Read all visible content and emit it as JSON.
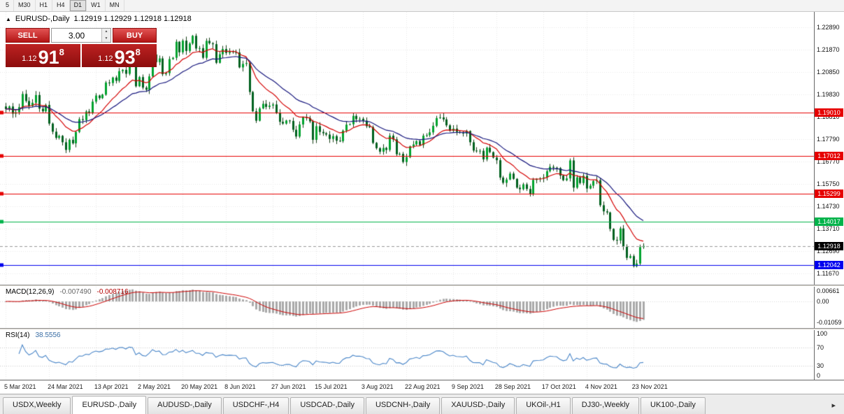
{
  "toolbar": {
    "timeframes": [
      {
        "label": "5",
        "active": false
      },
      {
        "label": "M30",
        "active": false
      },
      {
        "label": "H1",
        "active": false
      },
      {
        "label": "H4",
        "active": false
      },
      {
        "label": "D1",
        "active": true
      },
      {
        "label": "W1",
        "active": false
      },
      {
        "label": "MN",
        "active": false
      }
    ]
  },
  "header": {
    "collapse_icon": "▲",
    "symbol": "EURUSD-,Daily",
    "ohlc": "1.12919 1.12929 1.12918 1.12918"
  },
  "trade_panel": {
    "sell_label": "SELL",
    "buy_label": "BUY",
    "volume": "3.00",
    "spin_up_icon": "▲",
    "spin_down_icon": "▼",
    "sell_price": {
      "prefix": "1.12",
      "big": "91",
      "sup": "8"
    },
    "buy_price": {
      "prefix": "1.12",
      "big": "93",
      "sup": "8"
    }
  },
  "price_axis_labels": [
    "1.22890",
    "1.21870",
    "1.20850",
    "1.19830",
    "1.18810",
    "1.17790",
    "1.16770",
    "1.15750",
    "1.14730",
    "1.13710",
    "1.12690",
    "1.11670"
  ],
  "date_axis": [
    {
      "label": "5 Mar 2021",
      "bar": 0
    },
    {
      "label": "24 Mar 2021",
      "bar": 13
    },
    {
      "label": "13 Apr 2021",
      "bar": 27
    },
    {
      "label": "2 May 2021",
      "bar": 40
    },
    {
      "label": "20 May 2021",
      "bar": 53
    },
    {
      "label": "8 Jun 2021",
      "bar": 66
    },
    {
      "label": "27 Jun 2021",
      "bar": 80
    },
    {
      "label": "15 Jul 2021",
      "bar": 93
    },
    {
      "label": "3 Aug 2021",
      "bar": 107
    },
    {
      "label": "22 Aug 2021",
      "bar": 120
    },
    {
      "label": "9 Sep 2021",
      "bar": 134
    },
    {
      "label": "28 Sep 2021",
      "bar": 147
    },
    {
      "label": "17 Oct 2021",
      "bar": 161
    },
    {
      "label": "4 Nov 2021",
      "bar": 174
    },
    {
      "label": "23 Nov 2021",
      "bar": 188
    }
  ],
  "tabs": {
    "items": [
      {
        "label": "USDX,Weekly",
        "active": false
      },
      {
        "label": "EURUSD-,Daily",
        "active": true
      },
      {
        "label": "AUDUSD-,Daily",
        "active": false
      },
      {
        "label": "USDCHF-,H4",
        "active": false
      },
      {
        "label": "USDCAD-,Daily",
        "active": false
      },
      {
        "label": "USDCNH-,Daily",
        "active": false
      },
      {
        "label": "XAUUSD-,Daily",
        "active": false
      },
      {
        "label": "UKOil-,H1",
        "active": false
      },
      {
        "label": "DJ30-,Weekly",
        "active": false
      },
      {
        "label": "UK100-,Daily",
        "active": false
      }
    ],
    "scroll_icon": "▸"
  },
  "indicators": {
    "macd": {
      "label": "MACD(12,26,9)",
      "value_main": "-0.007490",
      "value_signal": "-0.008716",
      "axis": [
        {
          "value": 0.00661,
          "label": "0.00661"
        },
        {
          "value": 0,
          "label": "0.00"
        },
        {
          "value": -0.01059,
          "label": "-0.01059"
        }
      ]
    },
    "rsi": {
      "label": "RSI(14)",
      "value": "38.5556",
      "axis": [
        {
          "value": 100,
          "label": "100"
        },
        {
          "value": 70,
          "label": "70"
        },
        {
          "value": 30,
          "label": "30"
        },
        {
          "value": 0,
          "label": "0"
        }
      ],
      "levels": [
        70,
        30
      ]
    }
  },
  "chart_data": {
    "type": "candlestick",
    "symbol": "EURUSD-",
    "timeframe": "Daily",
    "ylim": [
      1.1116,
      1.2359
    ],
    "price_step": 0.0102,
    "closes": [
      1.1916,
      1.1928,
      1.1895,
      1.1902,
      1.1925,
      1.1985,
      1.1953,
      1.193,
      1.1945,
      1.198,
      1.1918,
      1.1906,
      1.1935,
      1.185,
      1.1813,
      1.1785,
      1.1794,
      1.1765,
      1.173,
      1.1776,
      1.176,
      1.1812,
      1.187,
      1.1866,
      1.1905,
      1.1898,
      1.195,
      1.1978,
      1.1966,
      1.1982,
      1.2037,
      1.2035,
      1.206,
      1.2045,
      1.2089,
      1.2095,
      1.2077,
      1.2125,
      1.212,
      1.202,
      1.2062,
      1.2014,
      1.2004,
      1.2065,
      1.2165,
      1.213,
      1.2147,
      1.2075,
      1.208,
      1.2144,
      1.215,
      1.2223,
      1.2175,
      1.2228,
      1.2181,
      1.2215,
      1.225,
      1.2192,
      1.2194,
      1.215,
      1.2227,
      1.2216,
      1.2212,
      1.2127,
      1.2166,
      1.219,
      1.2172,
      1.218,
      1.2176,
      1.2174,
      1.2106,
      1.2122,
      1.2126,
      1.1994,
      1.1906,
      1.1863,
      1.1919,
      1.194,
      1.1926,
      1.1932,
      1.1937,
      1.1898,
      1.1858,
      1.185,
      1.1864,
      1.1862,
      1.1822,
      1.1791,
      1.1846,
      1.1879,
      1.1875,
      1.186,
      1.1776,
      1.1838,
      1.1812,
      1.1806,
      1.18,
      1.178,
      1.1793,
      1.1772,
      1.177,
      1.1818,
      1.1845,
      1.1847,
      1.1885,
      1.187,
      1.1872,
      1.1863,
      1.1838,
      1.1834,
      1.1762,
      1.1738,
      1.1722,
      1.1739,
      1.173,
      1.1795,
      1.1778,
      1.171,
      1.1712,
      1.1675,
      1.1697,
      1.1746,
      1.1755,
      1.177,
      1.1752,
      1.1795,
      1.1797,
      1.181,
      1.184,
      1.1875,
      1.1878,
      1.1869,
      1.1842,
      1.1817,
      1.1827,
      1.1812,
      1.181,
      1.1805,
      1.1816,
      1.1765,
      1.1727,
      1.1725,
      1.1726,
      1.1687,
      1.174,
      1.172,
      1.1695,
      1.1683,
      1.1604,
      1.158,
      1.1595,
      1.1622,
      1.1598,
      1.1558,
      1.1551,
      1.1573,
      1.1552,
      1.153,
      1.1593,
      1.1598,
      1.1601,
      1.1605,
      1.1633,
      1.1653,
      1.1649,
      1.1647,
      1.1613,
      1.1592,
      1.16,
      1.1682,
      1.1558,
      1.1605,
      1.1579,
      1.1612,
      1.1554,
      1.1567,
      1.1588,
      1.1592,
      1.1478,
      1.145,
      1.1445,
      1.137,
      1.132,
      1.1317,
      1.1372,
      1.1289,
      1.1238,
      1.1246,
      1.12,
      1.1212,
      1.1287,
      1.1292
    ],
    "sr_lines": [
      {
        "price": 1.1901,
        "label": "1.19010",
        "color": "#e60000"
      },
      {
        "price": 1.17012,
        "label": "1.17012",
        "color": "#e60000"
      },
      {
        "price": 1.15299,
        "label": "1.15299",
        "color": "#e60000"
      },
      {
        "price": 1.14017,
        "label": "1.14017",
        "color": "#00b34a"
      },
      {
        "price": 1.12042,
        "label": "1.12042",
        "color": "#0000ee"
      }
    ],
    "current_price": {
      "price": 1.12918,
      "label": "1.12918",
      "color": "#000000"
    },
    "overlays": [
      {
        "name": "EMA",
        "period": 12,
        "color": "#d40000"
      },
      {
        "name": "EMA",
        "period": 26,
        "color": "#16167d"
      }
    ],
    "macd": {
      "fast": 12,
      "slow": 26,
      "signal": 9,
      "ylim": [
        -0.0135,
        0.0075
      ],
      "hist_color": "#a9a9a9",
      "signal_color": "#cc0000"
    },
    "rsi": {
      "period": 14,
      "color": "#4a86c8"
    },
    "colors": {
      "bull": "#00a32e",
      "bear": "#01611f",
      "wick": "#133d13",
      "grid": "#e7e7e7"
    }
  }
}
